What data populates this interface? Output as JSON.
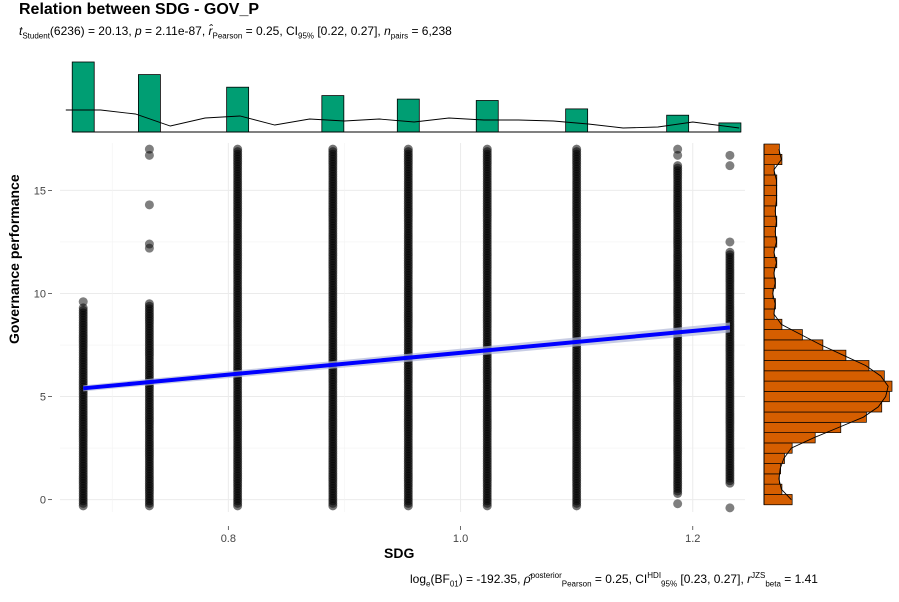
{
  "title": "Relation between SDG - GOV_P",
  "subtitle": {
    "t_sub": "Student",
    "t_text": "(6236) = 20.13, ",
    "p_text": "p",
    "p_val": " = 2.11e-87, ",
    "r_sub": "Pearson",
    "r_val": " = 0.25, CI",
    "ci_sub": "95%",
    "ci_val": " [0.22, 0.27], ",
    "n_text": "n",
    "n_sub": "pairs",
    "n_val": " = 6,238"
  },
  "caption": {
    "log_pre": "log",
    "log_sub": "e",
    "bf_pre": "(BF",
    "bf_sub": "01",
    "bf_val": ") = -192.35, ",
    "rho_sup": "posterior",
    "rho_sub": "Pearson",
    "rho_val": " = 0.25, CI",
    "ci_sup": "HDI",
    "ci_sub": "95%",
    "ci_val": " [0.23, 0.27], ",
    "rb_sup": "JZS",
    "rb_sub": "beta",
    "rb_val": " = 1.41"
  },
  "colors": {
    "top_hist": "#009E73",
    "side_hist": "#D55E00",
    "regression": "#0000FF",
    "points": "#000000"
  },
  "chart_data": {
    "type": "scatter",
    "title": "Relation between SDG - GOV_P",
    "xlabel": "SDG",
    "ylabel": "Governance performance",
    "xlim": [
      0.655,
      1.245
    ],
    "ylim": [
      -0.6,
      17.3
    ],
    "x_ticks": [
      0.8,
      1.0,
      1.2
    ],
    "x_tick_labels": [
      "0.8",
      "1.0",
      "1.2"
    ],
    "y_ticks": [
      0,
      5,
      10,
      15
    ],
    "y_tick_labels": [
      "0",
      "5",
      "10",
      "15"
    ],
    "grid": true,
    "columns": [
      {
        "x": 0.675,
        "dense_min": -0.3,
        "dense_max": 9.3,
        "extras": [
          9.6
        ]
      },
      {
        "x": 0.732,
        "dense_min": -0.3,
        "dense_max": 9.5,
        "extras": [
          12.2,
          12.4,
          14.3,
          16.7,
          17.0
        ]
      },
      {
        "x": 0.808,
        "dense_min": -0.3,
        "dense_max": 17.0,
        "extras": []
      },
      {
        "x": 0.89,
        "dense_min": -0.3,
        "dense_max": 17.0,
        "extras": []
      },
      {
        "x": 0.955,
        "dense_min": -0.3,
        "dense_max": 17.0,
        "extras": []
      },
      {
        "x": 1.023,
        "dense_min": -0.3,
        "dense_max": 17.0,
        "extras": []
      },
      {
        "x": 1.1,
        "dense_min": -0.3,
        "dense_max": 17.0,
        "extras": []
      },
      {
        "x": 1.187,
        "dense_min": 0.3,
        "dense_max": 16.2,
        "extras": [
          16.7,
          17.0,
          -0.2
        ]
      },
      {
        "x": 1.232,
        "dense_min": 0.8,
        "dense_max": 12.0,
        "extras": [
          12.5,
          16.2,
          16.7,
          -0.4
        ]
      }
    ],
    "regression": {
      "x": [
        0.675,
        1.232
      ],
      "y": [
        5.4,
        8.35
      ]
    },
    "marginal_x": {
      "bins": [
        {
          "x": 0.675,
          "count": 1.0
        },
        {
          "x": 0.732,
          "count": 0.82
        },
        {
          "x": 0.808,
          "count": 0.64
        },
        {
          "x": 0.89,
          "count": 0.52
        },
        {
          "x": 0.955,
          "count": 0.47
        },
        {
          "x": 1.023,
          "count": 0.45
        },
        {
          "x": 1.1,
          "count": 0.33
        },
        {
          "x": 1.187,
          "count": 0.24
        },
        {
          "x": 1.232,
          "count": 0.13
        }
      ]
    },
    "marginal_y": {
      "bins": [
        {
          "y": 0,
          "count": 0.22
        },
        {
          "y": 0.5,
          "count": 0.14
        },
        {
          "y": 1,
          "count": 0.12
        },
        {
          "y": 1.5,
          "count": 0.13
        },
        {
          "y": 2,
          "count": 0.16
        },
        {
          "y": 2.5,
          "count": 0.22
        },
        {
          "y": 3,
          "count": 0.4
        },
        {
          "y": 3.5,
          "count": 0.6
        },
        {
          "y": 4,
          "count": 0.8
        },
        {
          "y": 4.5,
          "count": 0.92
        },
        {
          "y": 5,
          "count": 0.98
        },
        {
          "y": 5.5,
          "count": 1.0
        },
        {
          "y": 6,
          "count": 0.94
        },
        {
          "y": 6.5,
          "count": 0.82
        },
        {
          "y": 7,
          "count": 0.64
        },
        {
          "y": 7.5,
          "count": 0.46
        },
        {
          "y": 8,
          "count": 0.3
        },
        {
          "y": 8.5,
          "count": 0.14
        },
        {
          "y": 9,
          "count": 0.08
        },
        {
          "y": 9.5,
          "count": 0.09
        },
        {
          "y": 10,
          "count": 0.07
        },
        {
          "y": 10.5,
          "count": 0.09
        },
        {
          "y": 11,
          "count": 0.08
        },
        {
          "y": 11.5,
          "count": 0.1
        },
        {
          "y": 12,
          "count": 0.08
        },
        {
          "y": 12.5,
          "count": 0.1
        },
        {
          "y": 13,
          "count": 0.09
        },
        {
          "y": 13.5,
          "count": 0.1
        },
        {
          "y": 14,
          "count": 0.09
        },
        {
          "y": 14.5,
          "count": 0.1
        },
        {
          "y": 15,
          "count": 0.1
        },
        {
          "y": 15.5,
          "count": 0.1
        },
        {
          "y": 16,
          "count": 0.08
        },
        {
          "y": 16.5,
          "count": 0.14
        },
        {
          "y": 17,
          "count": 0.12
        }
      ]
    }
  }
}
